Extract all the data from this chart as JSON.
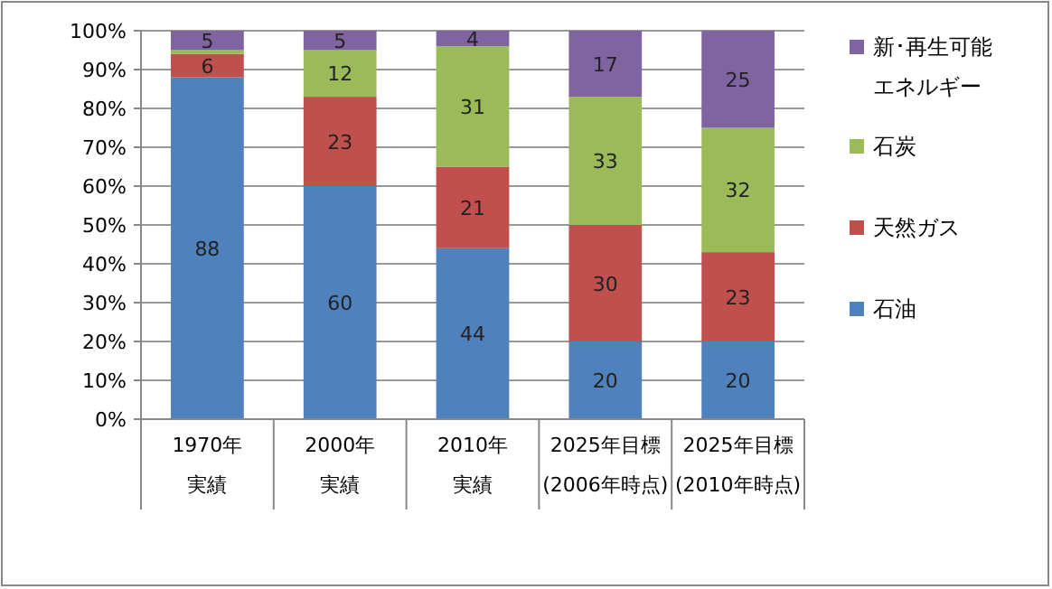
{
  "chart_data": {
    "type": "bar",
    "stacked": true,
    "grid": "y",
    "legend": "right",
    "categories": [
      "1970年実績",
      "2000年実績",
      "2010年実績",
      "2025年目標\n(2006年時点)",
      "2025年目標\n(2010年時点)"
    ],
    "ylim": [
      0,
      100
    ],
    "yticks": [
      {
        "value": 0,
        "label": "0%"
      },
      {
        "value": 10,
        "label": "10%"
      },
      {
        "value": 20,
        "label": "20%"
      },
      {
        "value": 30,
        "label": "30%"
      },
      {
        "value": 40,
        "label": "40%"
      },
      {
        "value": 50,
        "label": "50%"
      },
      {
        "value": 60,
        "label": "60%"
      },
      {
        "value": 70,
        "label": "70%"
      },
      {
        "value": 80,
        "label": "80%"
      },
      {
        "value": 90,
        "label": "90%"
      },
      {
        "value": 100,
        "label": "100%"
      }
    ],
    "series": [
      {
        "name": "石油",
        "color": "#4f81bd",
        "values": [
          88,
          60,
          44,
          20,
          20
        ],
        "value_labels": [
          "88",
          "60",
          "44",
          "20",
          "20"
        ]
      },
      {
        "name": "天然ガス",
        "color": "#c0504d",
        "values": [
          6,
          23,
          21,
          30,
          23
        ],
        "value_labels": [
          "6",
          "23",
          "21",
          "30",
          "23"
        ]
      },
      {
        "name": "石炭",
        "color": "#9bbb59",
        "values": [
          1,
          12,
          31,
          33,
          32
        ],
        "value_labels": [
          null,
          "12",
          "31",
          "33",
          "32"
        ]
      },
      {
        "name": "新･再生可能エネルギー",
        "color": "#8064a2",
        "values": [
          5,
          5,
          4,
          17,
          25
        ],
        "value_labels": [
          "5",
          "5",
          "4",
          "17",
          "25"
        ]
      }
    ]
  }
}
